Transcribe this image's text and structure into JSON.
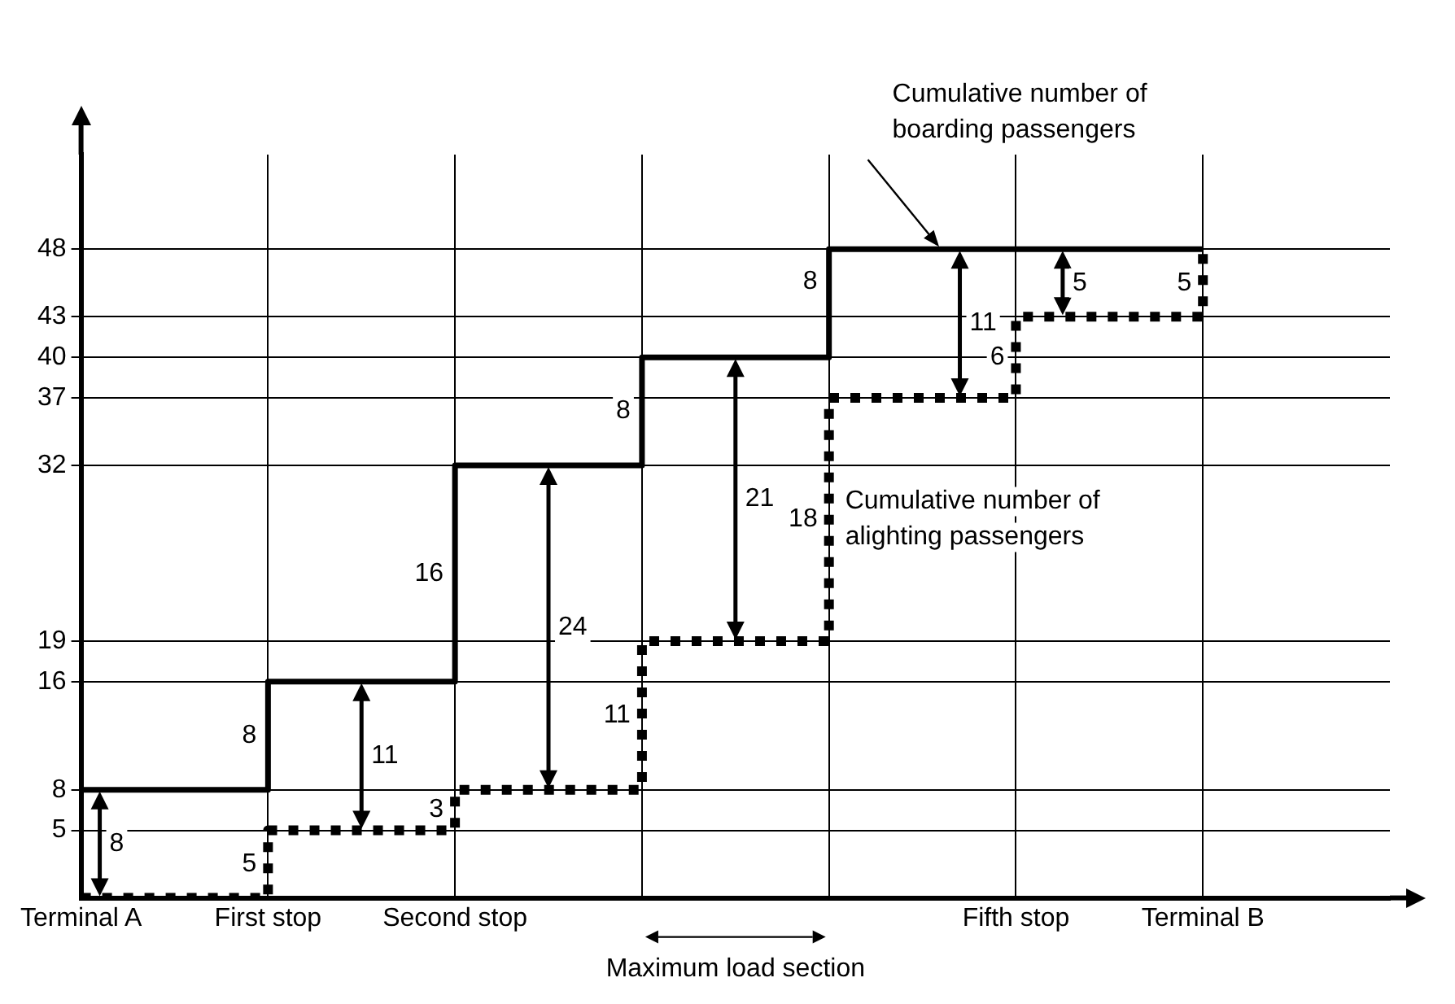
{
  "chart_data": {
    "type": "step",
    "categories": [
      "Terminal A",
      "First stop",
      "Second stop",
      null,
      null,
      "Fifth stop",
      "Terminal B"
    ],
    "series": [
      {
        "name": "Cumulative number of boarding passengers",
        "color": "#000000",
        "line_style": "solid",
        "values": [
          8,
          16,
          32,
          40,
          48,
          48,
          48
        ]
      },
      {
        "name": "Cumulative number of alighting passengers",
        "color": "#000000",
        "line_style": "dotted",
        "values": [
          0,
          5,
          8,
          19,
          37,
          43,
          48
        ]
      }
    ],
    "ylim": [
      0,
      55
    ],
    "yticks": [
      5,
      8,
      16,
      19,
      32,
      37,
      40,
      43,
      48
    ],
    "grid": true,
    "annotations": [
      {
        "text": "8",
        "x": "Terminal A",
        "y": 8
      },
      "8",
      "5",
      {
        "text": "11",
        "y": 10.5
      },
      "16",
      "3",
      {
        "text": "24",
        "y": 20
      },
      "8",
      "11",
      {
        "text": "21",
        "y": 29.5
      },
      "8",
      "18",
      {
        "text": "11",
        "y": 42.5
      },
      {
        "text": "6",
        "y": 40
      },
      {
        "text": "5",
        "y": 45.5
      },
      "5",
      "Maximum load section"
    ]
  }
}
